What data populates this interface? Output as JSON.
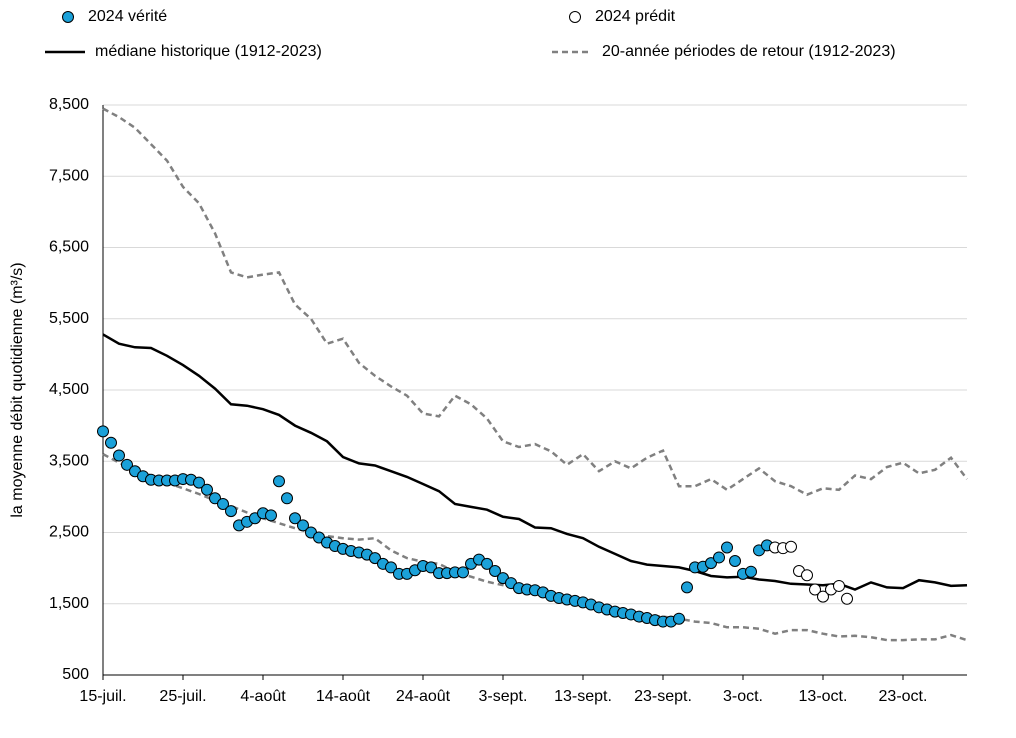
{
  "chart_data": {
    "type": "line",
    "y_label": "la moyenne débit quotidienne (m³/s)",
    "xlim": [
      0,
      108
    ],
    "xticks": [
      {
        "value": 0,
        "label": "15-juil."
      },
      {
        "value": 10,
        "label": "25-juil."
      },
      {
        "value": 20,
        "label": "4-août"
      },
      {
        "value": 30,
        "label": "14-août"
      },
      {
        "value": 40,
        "label": "24-août"
      },
      {
        "value": 50,
        "label": "3-sept."
      },
      {
        "value": 60,
        "label": "13-sept."
      },
      {
        "value": 70,
        "label": "23-sept."
      },
      {
        "value": 80,
        "label": "3-oct."
      },
      {
        "value": 90,
        "label": "13-oct."
      },
      {
        "value": 100,
        "label": "23-oct."
      }
    ],
    "ylim": [
      500,
      8500
    ],
    "yticks": [
      {
        "value": 500,
        "label": "500"
      },
      {
        "value": 1500,
        "label": "1,500"
      },
      {
        "value": 2500,
        "label": "2,500"
      },
      {
        "value": 3500,
        "label": "3,500"
      },
      {
        "value": 4500,
        "label": "4,500"
      },
      {
        "value": 5500,
        "label": "5,500"
      },
      {
        "value": 6500,
        "label": "6,500"
      },
      {
        "value": 7500,
        "label": "7,500"
      },
      {
        "value": 8500,
        "label": "8,500"
      }
    ],
    "grid": true,
    "legend": "top",
    "series": [
      {
        "name": "2024 vérité",
        "kind": "marker",
        "color": "#1ba1d9",
        "x": [
          0,
          1,
          2,
          3,
          4,
          5,
          6,
          7,
          8,
          9,
          10,
          11,
          12,
          13,
          14,
          15,
          16,
          17,
          18,
          19,
          20,
          21,
          22,
          23,
          24,
          25,
          26,
          27,
          28,
          29,
          30,
          31,
          32,
          33,
          34,
          35,
          36,
          37,
          38,
          39,
          40,
          41,
          42,
          43,
          44,
          45,
          46,
          47,
          48,
          49,
          50,
          51,
          52,
          53,
          54,
          55,
          56,
          57,
          58,
          59,
          60,
          61,
          62,
          63,
          64,
          65,
          66,
          67,
          68,
          69,
          70,
          71,
          72,
          73,
          74,
          75,
          76,
          77,
          78,
          79,
          80,
          81,
          82,
          83
        ],
        "values": [
          3920,
          3760,
          3580,
          3450,
          3360,
          3290,
          3240,
          3230,
          3230,
          3230,
          3250,
          3240,
          3200,
          3100,
          2980,
          2900,
          2800,
          2600,
          2650,
          2700,
          2770,
          2740,
          3220,
          2980,
          2700,
          2600,
          2500,
          2430,
          2360,
          2310,
          2270,
          2240,
          2220,
          2190,
          2140,
          2060,
          2010,
          1920,
          1920,
          1970,
          2030,
          2010,
          1930,
          1930,
          1940,
          1940,
          2060,
          2120,
          2060,
          1960,
          1860,
          1790,
          1720,
          1700,
          1690,
          1660,
          1610,
          1580,
          1560,
          1540,
          1520,
          1490,
          1450,
          1420,
          1390,
          1370,
          1350,
          1320,
          1300,
          1270,
          1250,
          1250,
          1290,
          1730,
          2010,
          2020,
          2070,
          2150,
          2290,
          2100,
          1920,
          1950,
          2250,
          2320
        ]
      },
      {
        "name": "2024 prédit",
        "kind": "marker",
        "color": "#ffffff",
        "x": [
          84,
          85,
          86,
          87,
          88,
          89,
          90,
          91,
          92,
          93
        ],
        "values": [
          2290,
          2280,
          2300,
          1960,
          1900,
          1700,
          1600,
          1700,
          1750,
          1570
        ]
      },
      {
        "name": "médiane historique (1912-2023)",
        "kind": "line",
        "color": "#000000",
        "x": [
          0,
          2,
          4,
          6,
          8,
          10,
          12,
          14,
          16,
          18,
          20,
          22,
          24,
          26,
          28,
          30,
          32,
          34,
          36,
          38,
          40,
          42,
          44,
          46,
          48,
          50,
          52,
          54,
          56,
          58,
          60,
          62,
          64,
          66,
          68,
          70,
          72,
          74,
          76,
          78,
          80,
          82,
          84,
          86,
          88,
          90,
          92,
          94,
          96,
          98,
          100,
          102,
          104,
          106,
          108
        ],
        "values": [
          5280,
          5150,
          5100,
          5090,
          4980,
          4850,
          4700,
          4520,
          4300,
          4280,
          4230,
          4150,
          4000,
          3900,
          3780,
          3560,
          3470,
          3440,
          3360,
          3280,
          3180,
          3080,
          2900,
          2860,
          2820,
          2720,
          2690,
          2570,
          2560,
          2480,
          2420,
          2300,
          2200,
          2100,
          2050,
          2030,
          2010,
          1960,
          1890,
          1870,
          1880,
          1840,
          1820,
          1780,
          1770,
          1760,
          1780,
          1700,
          1800,
          1730,
          1720,
          1830,
          1800,
          1750,
          1760
        ]
      },
      {
        "name": "20-année périodes de retour (1912-2023)",
        "kind": "dashed",
        "color": "#808080",
        "x": [
          0,
          2,
          4,
          6,
          8,
          10,
          12,
          14,
          16,
          18,
          20,
          22,
          24,
          26,
          28,
          30,
          32,
          34,
          36,
          38,
          40,
          42,
          44,
          46,
          48,
          50,
          52,
          54,
          56,
          58,
          60,
          62,
          64,
          66,
          68,
          70,
          72,
          74,
          76,
          78,
          80,
          82,
          84,
          86,
          88,
          90,
          92,
          94,
          96,
          98,
          100,
          102,
          104,
          106,
          108
        ],
        "values": [
          8450,
          8330,
          8180,
          7950,
          7720,
          7350,
          7120,
          6700,
          6150,
          6080,
          6120,
          6150,
          5700,
          5500,
          5150,
          5220,
          4880,
          4700,
          4550,
          4420,
          4170,
          4130,
          4420,
          4300,
          4100,
          3780,
          3700,
          3740,
          3640,
          3450,
          3600,
          3360,
          3500,
          3400,
          3550,
          3650,
          3150,
          3150,
          3250,
          3100,
          3250,
          3400,
          3220,
          3150,
          3030,
          3120,
          3100,
          3300,
          3250,
          3420,
          3480,
          3330,
          3380,
          3550,
          3250
        ],
        "lower_values": [
          3600,
          3480,
          3380,
          3300,
          3200,
          3120,
          3040,
          2950,
          2870,
          2780,
          2700,
          2630,
          2560,
          2500,
          2450,
          2420,
          2400,
          2420,
          2250,
          2140,
          2090,
          2060,
          1950,
          1880,
          1810,
          1760,
          1710,
          1660,
          1640,
          1590,
          1560,
          1500,
          1450,
          1380,
          1330,
          1320,
          1290,
          1250,
          1230,
          1170,
          1170,
          1150,
          1080,
          1130,
          1130,
          1080,
          1040,
          1050,
          1030,
          990,
          990,
          1000,
          1000,
          1060,
          990
        ]
      }
    ]
  }
}
